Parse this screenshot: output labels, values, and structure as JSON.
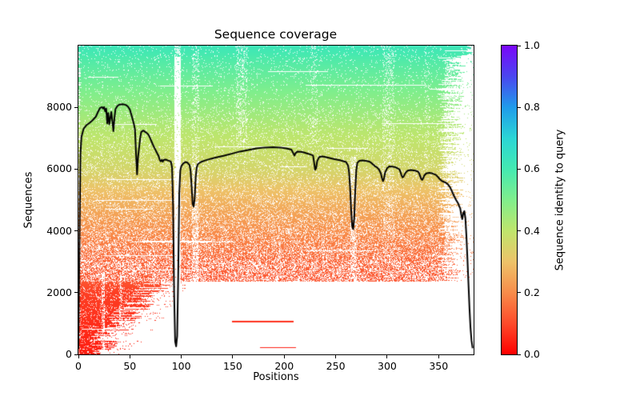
{
  "chart_data": {
    "type": "heatmap+line",
    "title": "Sequence coverage",
    "xlabel": "Positions",
    "ylabel": "Sequences",
    "xlim": [
      0,
      384
    ],
    "ylim": [
      0,
      10000
    ],
    "x_ticks": [
      0,
      50,
      100,
      150,
      200,
      250,
      300,
      350
    ],
    "y_ticks": [
      0,
      2000,
      4000,
      6000,
      8000
    ],
    "grid": false,
    "colorbar": {
      "label": "Sequence identity to query",
      "position": "right",
      "ticks": [
        0.0,
        0.2,
        0.4,
        0.6,
        0.8,
        1.0
      ],
      "tick_labels": [
        "0.0",
        "0.2",
        "0.4",
        "0.6",
        "0.8",
        "1.0"
      ]
    },
    "colormap": {
      "name": "rainbow_r",
      "stops": [
        [
          0.0,
          "#ff0000"
        ],
        [
          0.1,
          "#fd4a2a"
        ],
        [
          0.2,
          "#f88c4a"
        ],
        [
          0.3,
          "#edc369"
        ],
        [
          0.4,
          "#bfe56c"
        ],
        [
          0.5,
          "#80ee8c"
        ],
        [
          0.6,
          "#44e9b1"
        ],
        [
          0.7,
          "#2bd5d5"
        ],
        [
          0.8,
          "#1f9bea"
        ],
        [
          0.9,
          "#4a46f0"
        ],
        [
          1.0,
          "#7a06f9"
        ]
      ]
    },
    "heatmap": {
      "description": "Rows are sequences sorted by identity to query (bottom = lowest identity, red; top ~0.6, spring green). White = position not covered.",
      "total_sequences": 10000,
      "identity_profile": [
        [
          0.0,
          0.04
        ],
        [
          0.2,
          0.085
        ],
        [
          0.236,
          0.115
        ],
        [
          0.3,
          0.14
        ],
        [
          0.4,
          0.205
        ],
        [
          0.5,
          0.275
        ],
        [
          0.6,
          0.355
        ],
        [
          0.73,
          0.415
        ],
        [
          0.85,
          0.5
        ],
        [
          0.95,
          0.575
        ],
        [
          1.0,
          0.62
        ]
      ],
      "fragment_band_fraction": 0.236,
      "outlier_rows": [
        {
          "seq": 1050,
          "from": 149,
          "to": 209
        },
        {
          "seq": 200,
          "from": 176,
          "to": 211
        }
      ],
      "sparse_columns": [
        {
          "from": 22,
          "to": 25,
          "keep": 0.45,
          "fmin": 0,
          "fmax": 0.26
        },
        {
          "from": 39,
          "to": 42,
          "keep": 0.55,
          "fmin": 0,
          "fmax": 0.26
        },
        {
          "from": 93,
          "to": 99,
          "keep": 0.05,
          "fmin": 0,
          "fmax": 0.965
        },
        {
          "from": 93,
          "to": 99,
          "keep": 0.55,
          "fmin": 0.965,
          "fmax": 1
        },
        {
          "from": 110,
          "to": 116,
          "keep": 0.5,
          "fmin": 0,
          "fmax": 0.62
        },
        {
          "from": 110,
          "to": 117,
          "keep": 0.8,
          "fmin": 0.62,
          "fmax": 1
        },
        {
          "from": 153,
          "to": 164,
          "keep": 0.78,
          "fmin": 0.68,
          "fmax": 1
        },
        {
          "from": 225,
          "to": 232,
          "keep": 0.85,
          "fmin": 0.68,
          "fmax": 1
        },
        {
          "from": 264,
          "to": 270,
          "keep": 0.55,
          "fmin": 0,
          "fmax": 0.64
        },
        {
          "from": 295,
          "to": 307,
          "keep": 0.82,
          "fmin": 0.3,
          "fmax": 1
        },
        {
          "from": 336,
          "to": 341,
          "keep": 0.9,
          "fmin": 0.6,
          "fmax": 1
        },
        {
          "from": 356,
          "to": 377,
          "keep": 0.7,
          "fmin": 0,
          "fmax": 0.965
        }
      ]
    },
    "coverage_line": {
      "color": "#000000",
      "width": 2,
      "points": [
        [
          0,
          200
        ],
        [
          1,
          3500
        ],
        [
          2,
          6500
        ],
        [
          3,
          7050
        ],
        [
          5,
          7300
        ],
        [
          8,
          7430
        ],
        [
          11,
          7500
        ],
        [
          14,
          7590
        ],
        [
          17,
          7700
        ],
        [
          19,
          7850
        ],
        [
          21,
          7980
        ],
        [
          23,
          8010
        ],
        [
          24,
          7960
        ],
        [
          25,
          8010
        ],
        [
          26,
          7870
        ],
        [
          27,
          7960
        ],
        [
          28,
          7480
        ],
        [
          29,
          7820
        ],
        [
          30,
          7450
        ],
        [
          31,
          7650
        ],
        [
          32,
          7850
        ],
        [
          33,
          7550
        ],
        [
          34,
          7230
        ],
        [
          35,
          7650
        ],
        [
          36,
          7940
        ],
        [
          38,
          8050
        ],
        [
          40,
          8090
        ],
        [
          43,
          8100
        ],
        [
          46,
          8080
        ],
        [
          48,
          8030
        ],
        [
          50,
          7930
        ],
        [
          52,
          7700
        ],
        [
          54,
          7450
        ],
        [
          55,
          7280
        ],
        [
          56,
          6500
        ],
        [
          57,
          5830
        ],
        [
          58,
          6400
        ],
        [
          60,
          7000
        ],
        [
          61,
          7200
        ],
        [
          63,
          7250
        ],
        [
          66,
          7180
        ],
        [
          68,
          7120
        ],
        [
          70,
          6980
        ],
        [
          72,
          6820
        ],
        [
          74,
          6680
        ],
        [
          76,
          6550
        ],
        [
          78,
          6420
        ],
        [
          79,
          6300
        ],
        [
          80,
          6250
        ],
        [
          81,
          6300
        ],
        [
          82,
          6240
        ],
        [
          83,
          6300
        ],
        [
          85,
          6310
        ],
        [
          87,
          6280
        ],
        [
          89,
          6260
        ],
        [
          90,
          6230
        ],
        [
          91,
          6050
        ],
        [
          92,
          4800
        ],
        [
          93,
          2000
        ],
        [
          94,
          420
        ],
        [
          95,
          260
        ],
        [
          96,
          600
        ],
        [
          97,
          2600
        ],
        [
          98,
          5200
        ],
        [
          99,
          5950
        ],
        [
          100,
          6100
        ],
        [
          102,
          6190
        ],
        [
          104,
          6230
        ],
        [
          106,
          6210
        ],
        [
          108,
          6130
        ],
        [
          109,
          5950
        ],
        [
          110,
          5450
        ],
        [
          111,
          4870
        ],
        [
          112,
          4790
        ],
        [
          113,
          5050
        ],
        [
          114,
          5750
        ],
        [
          115,
          6050
        ],
        [
          116,
          6160
        ],
        [
          119,
          6230
        ],
        [
          123,
          6280
        ],
        [
          128,
          6330
        ],
        [
          134,
          6380
        ],
        [
          141,
          6430
        ],
        [
          149,
          6500
        ],
        [
          157,
          6570
        ],
        [
          165,
          6620
        ],
        [
          173,
          6670
        ],
        [
          181,
          6700
        ],
        [
          189,
          6710
        ],
        [
          196,
          6700
        ],
        [
          202,
          6670
        ],
        [
          207,
          6630
        ],
        [
          209,
          6500
        ],
        [
          210,
          6440
        ],
        [
          211,
          6520
        ],
        [
          213,
          6570
        ],
        [
          216,
          6560
        ],
        [
          219,
          6540
        ],
        [
          222,
          6510
        ],
        [
          225,
          6480
        ],
        [
          228,
          6440
        ],
        [
          229,
          6220
        ],
        [
          230,
          5980
        ],
        [
          231,
          6030
        ],
        [
          232,
          6260
        ],
        [
          234,
          6390
        ],
        [
          237,
          6410
        ],
        [
          240,
          6390
        ],
        [
          244,
          6360
        ],
        [
          248,
          6330
        ],
        [
          252,
          6300
        ],
        [
          255,
          6280
        ],
        [
          258,
          6250
        ],
        [
          260,
          6230
        ],
        [
          262,
          6120
        ],
        [
          263,
          5900
        ],
        [
          264,
          5400
        ],
        [
          265,
          4700
        ],
        [
          266,
          4150
        ],
        [
          267,
          4060
        ],
        [
          268,
          4400
        ],
        [
          269,
          5300
        ],
        [
          270,
          5950
        ],
        [
          271,
          6200
        ],
        [
          273,
          6270
        ],
        [
          276,
          6280
        ],
        [
          279,
          6270
        ],
        [
          282,
          6250
        ],
        [
          284,
          6220
        ],
        [
          286,
          6160
        ],
        [
          288,
          6100
        ],
        [
          290,
          6060
        ],
        [
          292,
          5990
        ],
        [
          294,
          5850
        ],
        [
          295,
          5700
        ],
        [
          296,
          5610
        ],
        [
          297,
          5700
        ],
        [
          298,
          5890
        ],
        [
          300,
          6030
        ],
        [
          302,
          6090
        ],
        [
          305,
          6080
        ],
        [
          308,
          6060
        ],
        [
          310,
          6030
        ],
        [
          312,
          5990
        ],
        [
          313,
          5900
        ],
        [
          314,
          5800
        ],
        [
          315,
          5730
        ],
        [
          316,
          5760
        ],
        [
          318,
          5890
        ],
        [
          320,
          5950
        ],
        [
          323,
          5970
        ],
        [
          327,
          5950
        ],
        [
          330,
          5920
        ],
        [
          331,
          5870
        ],
        [
          332,
          5780
        ],
        [
          333,
          5690
        ],
        [
          334,
          5650
        ],
        [
          335,
          5700
        ],
        [
          336,
          5790
        ],
        [
          338,
          5860
        ],
        [
          341,
          5880
        ],
        [
          344,
          5860
        ],
        [
          347,
          5820
        ],
        [
          349,
          5760
        ],
        [
          351,
          5680
        ],
        [
          353,
          5620
        ],
        [
          355,
          5590
        ],
        [
          357,
          5560
        ],
        [
          359,
          5510
        ],
        [
          361,
          5420
        ],
        [
          363,
          5280
        ],
        [
          365,
          5130
        ],
        [
          367,
          5000
        ],
        [
          369,
          4890
        ],
        [
          370,
          4800
        ],
        [
          371,
          4730
        ],
        [
          372,
          4520
        ],
        [
          373,
          4380
        ],
        [
          374,
          4580
        ],
        [
          375,
          4640
        ],
        [
          376,
          4420
        ],
        [
          377,
          3850
        ],
        [
          378,
          3100
        ],
        [
          379,
          2300
        ],
        [
          380,
          1500
        ],
        [
          381,
          850
        ],
        [
          382,
          450
        ],
        [
          383,
          220
        ]
      ]
    }
  }
}
